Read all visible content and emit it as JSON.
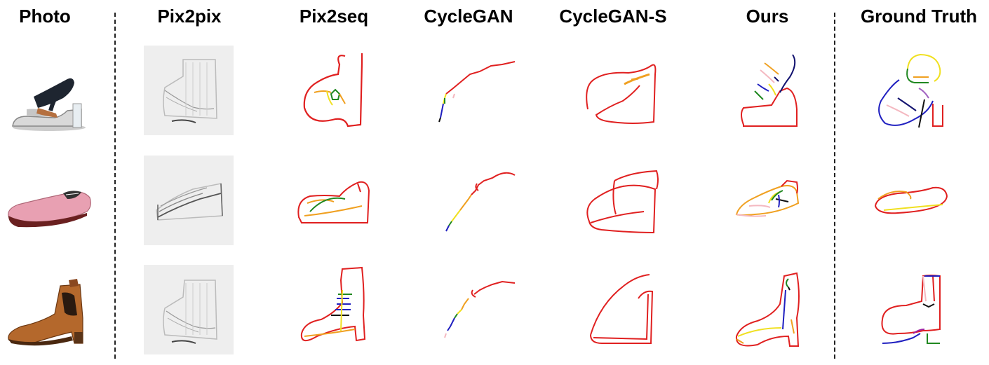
{
  "columns": [
    {
      "key": "photo",
      "label": "Photo"
    },
    {
      "key": "pix2pix",
      "label": "Pix2pix"
    },
    {
      "key": "pix2seq",
      "label": "Pix2seq"
    },
    {
      "key": "cyclegan",
      "label": "CycleGAN"
    },
    {
      "key": "cyclegan_s",
      "label": "CycleGAN-S"
    },
    {
      "key": "ours",
      "label": "Ours"
    },
    {
      "key": "ground_truth",
      "label": "Ground Truth"
    }
  ],
  "rows": [
    {
      "subject": "sandal"
    },
    {
      "subject": "slip-on"
    },
    {
      "subject": "ankle-boot"
    }
  ],
  "colors": {
    "red": "#e02020",
    "orange": "#f0a020",
    "yellow": "#f0e020",
    "green": "#208820",
    "blue": "#2020c0",
    "navy": "#10106e",
    "pink": "#f4b8c0",
    "black": "#111111"
  }
}
